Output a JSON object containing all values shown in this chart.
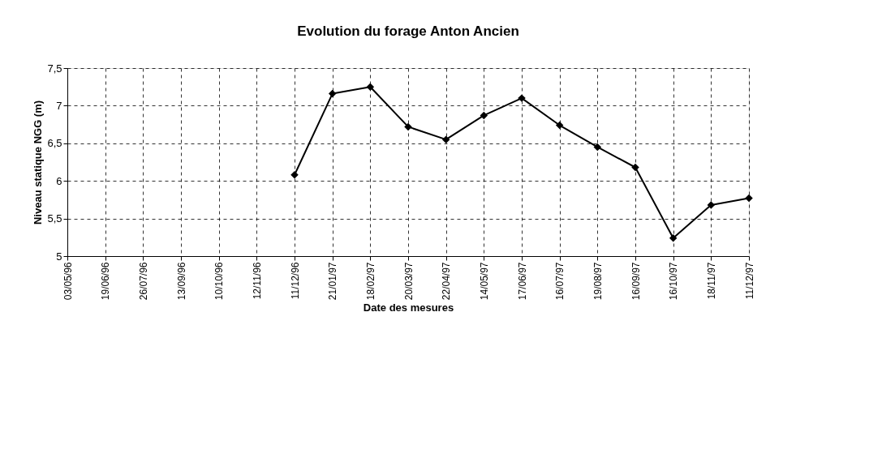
{
  "chart_data": {
    "type": "line",
    "title": "Evolution du forage Anton Ancien",
    "xlabel": "Date des mesures",
    "ylabel": "Niveau statique NGG (m)",
    "categories": [
      "03/05/96",
      "19/06/96",
      "26/07/96",
      "13/09/96",
      "10/10/96",
      "12/11/96",
      "11/12/96",
      "21/01/97",
      "18/02/97",
      "20/03/97",
      "22/04/97",
      "14/05/97",
      "17/06/97",
      "16/07/97",
      "19/08/97",
      "16/09/97",
      "16/10/97",
      "18/11/97",
      "11/12/97"
    ],
    "series": [
      {
        "color": "#000000",
        "values": [
          null,
          null,
          null,
          null,
          null,
          null,
          6.08,
          7.16,
          7.25,
          6.72,
          6.55,
          6.87,
          7.1,
          6.74,
          6.45,
          6.18,
          5.24,
          5.68,
          5.77
        ]
      }
    ],
    "ylim": [
      5,
      7.5
    ],
    "yticks": [
      {
        "value": 5,
        "label": "5"
      },
      {
        "value": 5.5,
        "label": "5,5"
      },
      {
        "value": 6,
        "label": "6"
      },
      {
        "value": 6.5,
        "label": "6,5"
      },
      {
        "value": 7,
        "label": "7"
      },
      {
        "value": 7.5,
        "label": "7,5"
      }
    ],
    "grid": true,
    "marker": "diamond",
    "line_style": "solid"
  }
}
